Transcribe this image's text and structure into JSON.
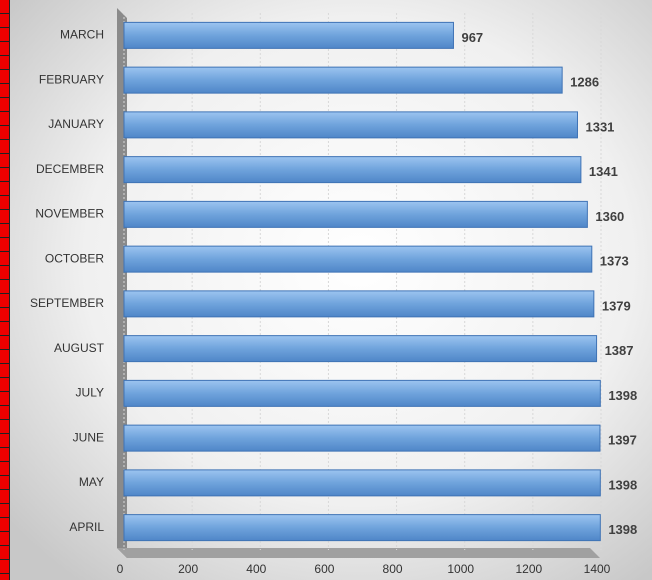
{
  "chart_data": {
    "type": "bar",
    "orientation": "horizontal",
    "categories": [
      "MARCH",
      "FEBRUARY",
      "JANUARY",
      "DECEMBER",
      "NOVEMBER",
      "OCTOBER",
      "SEPTEMBER",
      "AUGUST",
      "JULY",
      "JUNE",
      "MAY",
      "APRIL"
    ],
    "values": [
      967,
      1286,
      1331,
      1341,
      1360,
      1373,
      1379,
      1387,
      1398,
      1397,
      1398,
      1398
    ],
    "color": "#6fa3dc",
    "xlim": [
      0,
      1400
    ],
    "xticks": [
      0,
      200,
      400,
      600,
      800,
      1000,
      1200,
      1400
    ],
    "grid": true
  }
}
